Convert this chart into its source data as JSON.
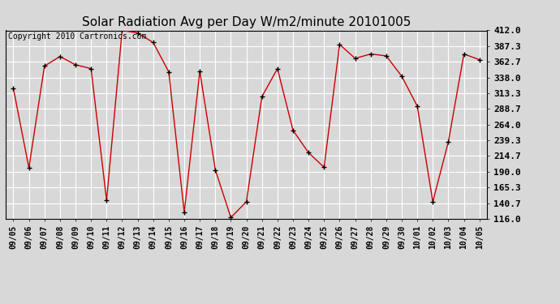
{
  "title": "Solar Radiation Avg per Day W/m2/minute 20101005",
  "copyright": "Copyright 2010 Cartronics.com",
  "dates": [
    "09/05",
    "09/06",
    "09/07",
    "09/08",
    "09/09",
    "09/10",
    "09/11",
    "09/12",
    "09/13",
    "09/14",
    "09/15",
    "09/16",
    "09/17",
    "09/18",
    "09/19",
    "09/20",
    "09/21",
    "09/22",
    "09/23",
    "09/24",
    "09/25",
    "09/26",
    "09/27",
    "09/28",
    "09/29",
    "09/30",
    "10/01",
    "10/02",
    "10/03",
    "10/04",
    "10/05"
  ],
  "values": [
    321.0,
    196.0,
    356.0,
    371.0,
    358.0,
    352.0,
    145.0,
    412.0,
    408.0,
    393.0,
    347.0,
    126.0,
    348.0,
    193.0,
    118.0,
    143.0,
    308.0,
    352.0,
    255.0,
    220.0,
    197.0,
    390.0,
    368.0,
    375.0,
    372.0,
    340.0,
    293.0,
    143.0,
    237.0,
    375.0,
    366.0
  ],
  "line_color": "#cc0000",
  "background_color": "#d8d8d8",
  "grid_color": "#ffffff",
  "ylim": [
    116.0,
    412.0
  ],
  "yticks": [
    116.0,
    140.7,
    165.3,
    190.0,
    214.7,
    239.3,
    264.0,
    288.7,
    313.3,
    338.0,
    362.7,
    387.3,
    412.0
  ],
  "title_fontsize": 11,
  "copyright_fontsize": 7,
  "tick_fontsize": 7,
  "ytick_fontsize": 8
}
